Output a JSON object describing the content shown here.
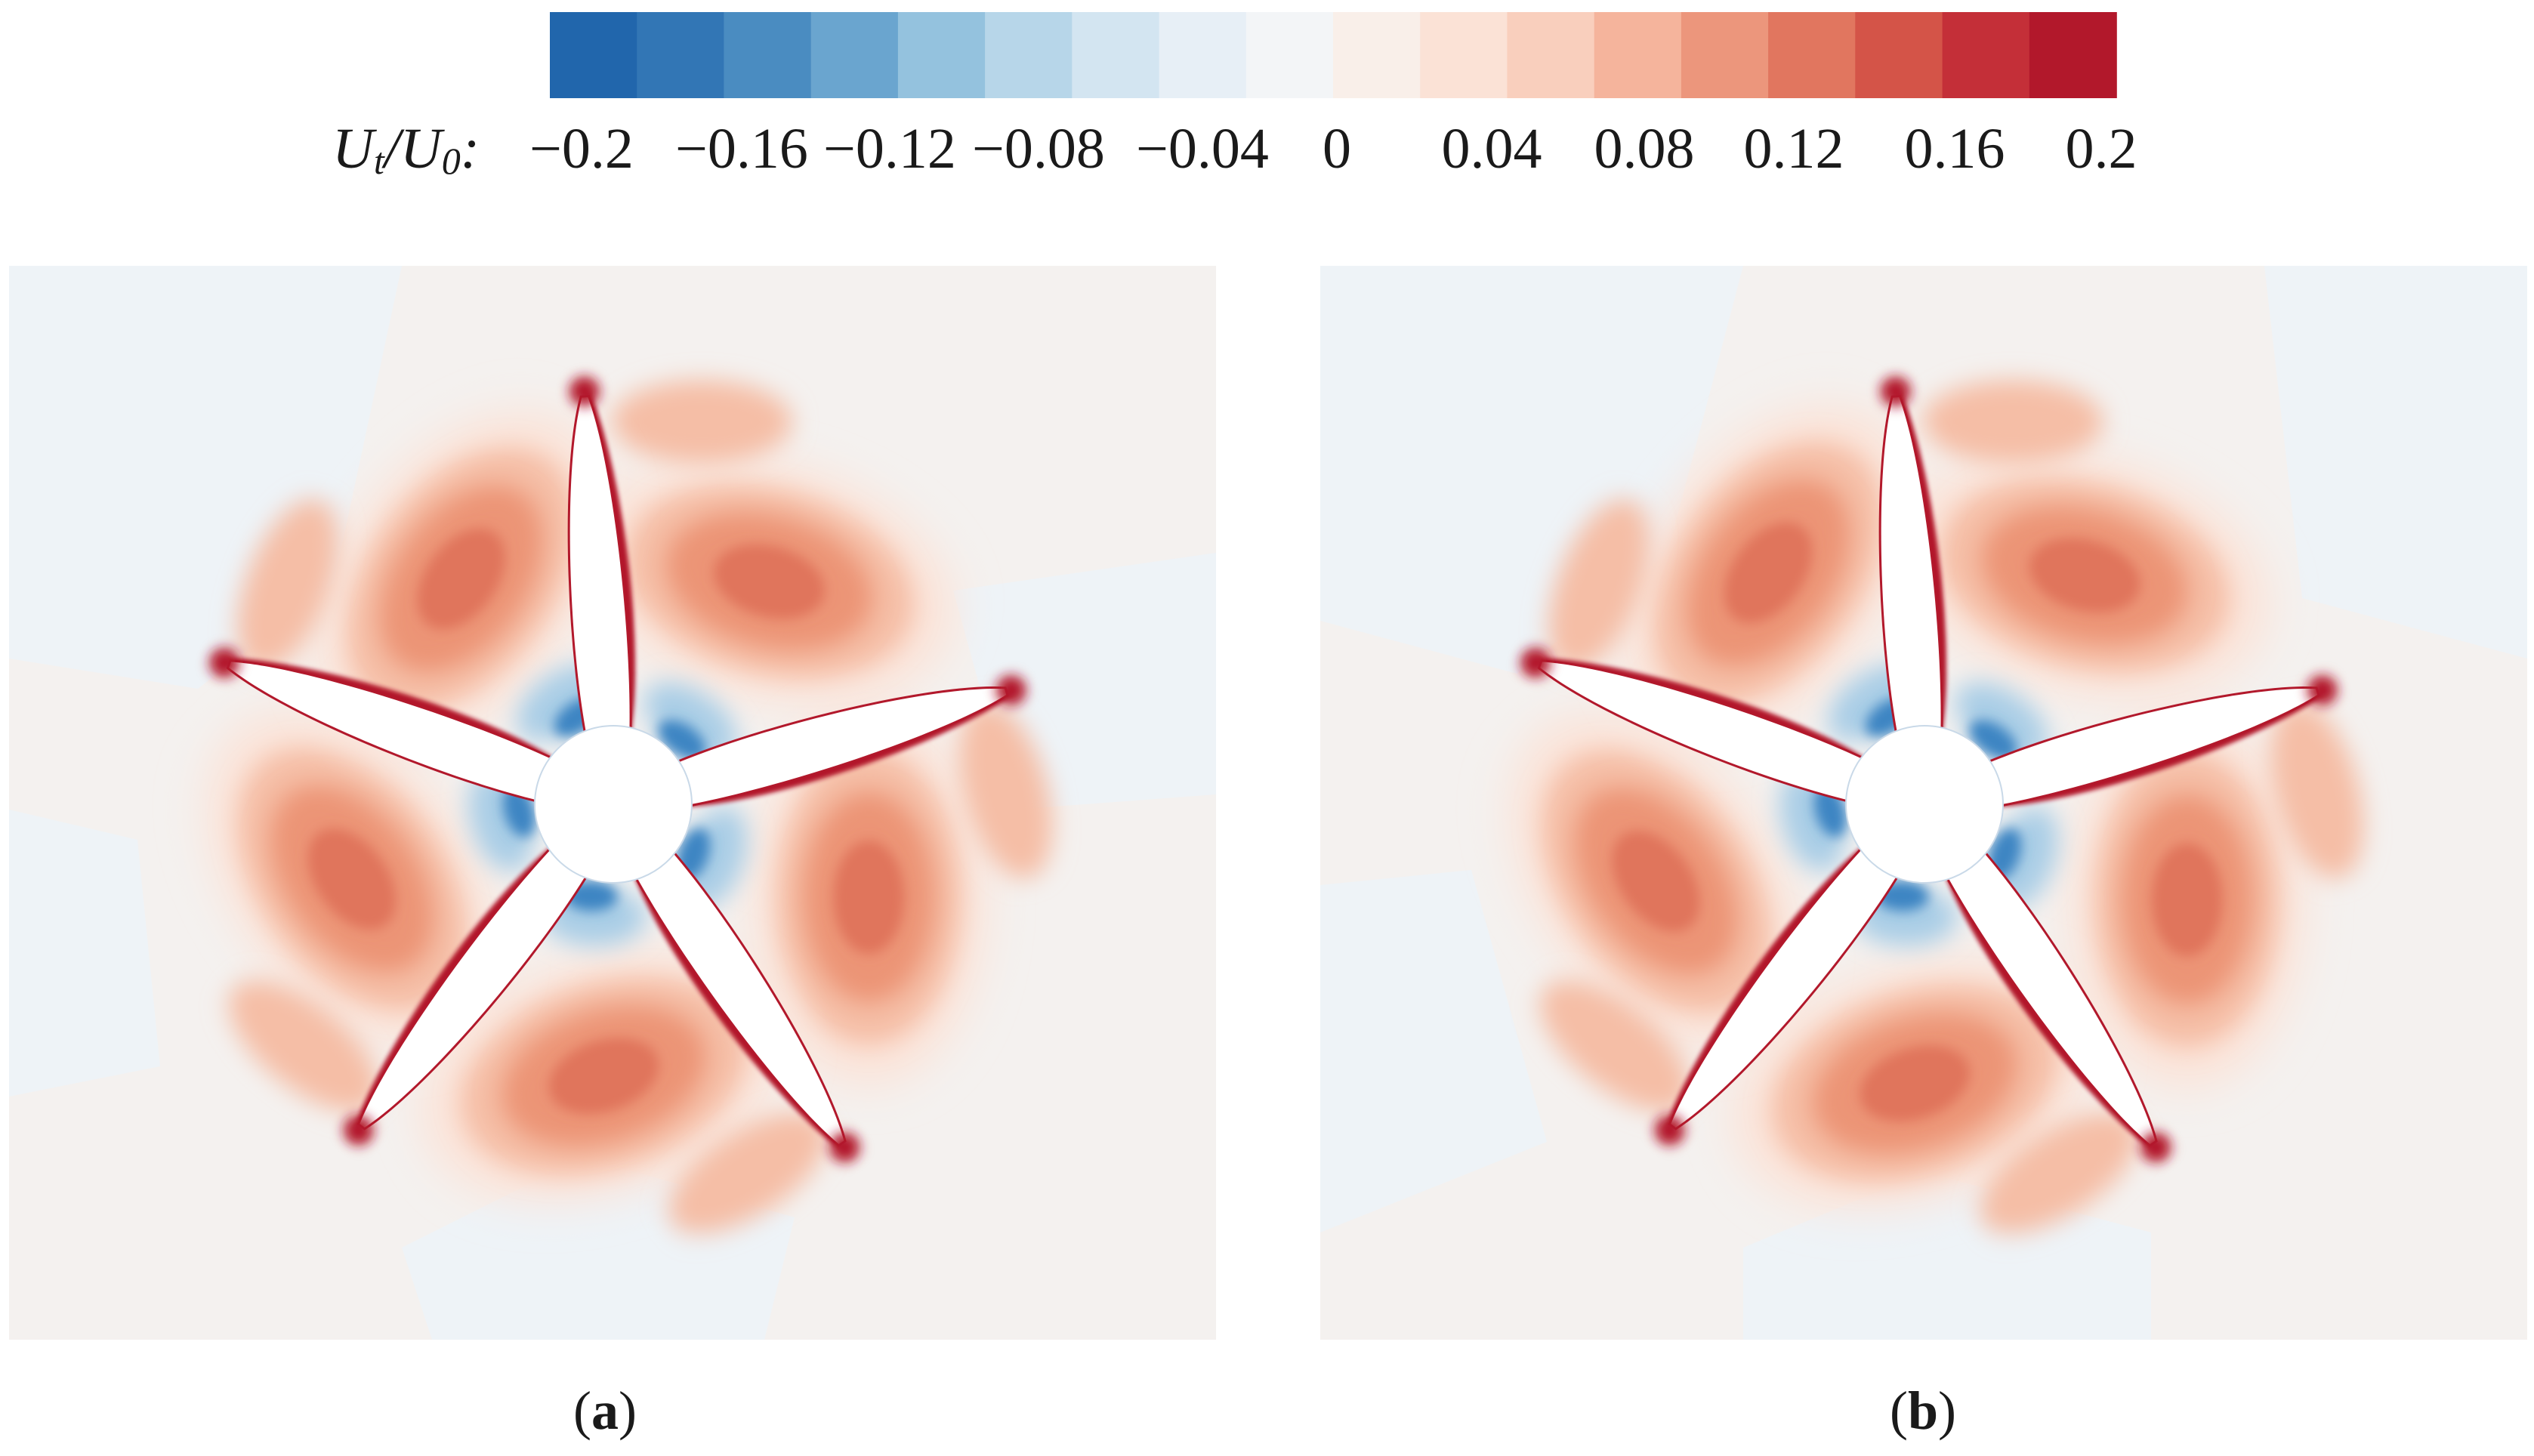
{
  "colorbar": {
    "label_main": "U",
    "label_sub1": "t",
    "label_slash": "/U",
    "label_sub2": "0",
    "label_colon": ":",
    "ticks": [
      "−0.2",
      "−0.16",
      "−0.12",
      "−0.08",
      "−0.04",
      "0",
      "0.04",
      "0.08",
      "0.12",
      "0.16",
      "0.2"
    ],
    "colors": [
      "#2166ac",
      "#3276b5",
      "#4a8cc1",
      "#6aa5cf",
      "#94c2de",
      "#b7d6e9",
      "#d3e5f1",
      "#e7eff6",
      "#f3f5f7",
      "#f9efe9",
      "#fbe2d6",
      "#f9cfbd",
      "#f5b49c",
      "#ec967c",
      "#e1765f",
      "#d45448",
      "#c42f38",
      "#b2182b"
    ]
  },
  "panels": [
    {
      "caption_open": "(",
      "caption_letter": "a",
      "caption_close": ")"
    },
    {
      "caption_open": "(",
      "caption_letter": "b",
      "caption_close": ")"
    }
  ],
  "palette": {
    "background_neutral": "#f4f1ef",
    "background_blue_zone": "#eef3f7",
    "vortex_outer": "#fbe3d8",
    "vortex_mid": "#f5bea6",
    "vortex_inner": "#ec9476",
    "vortex_core": "#e0755c",
    "shear_red": "#b2182b",
    "hub_blue": "#3d85c3",
    "hub_blue_light": "#a9cde6"
  }
}
